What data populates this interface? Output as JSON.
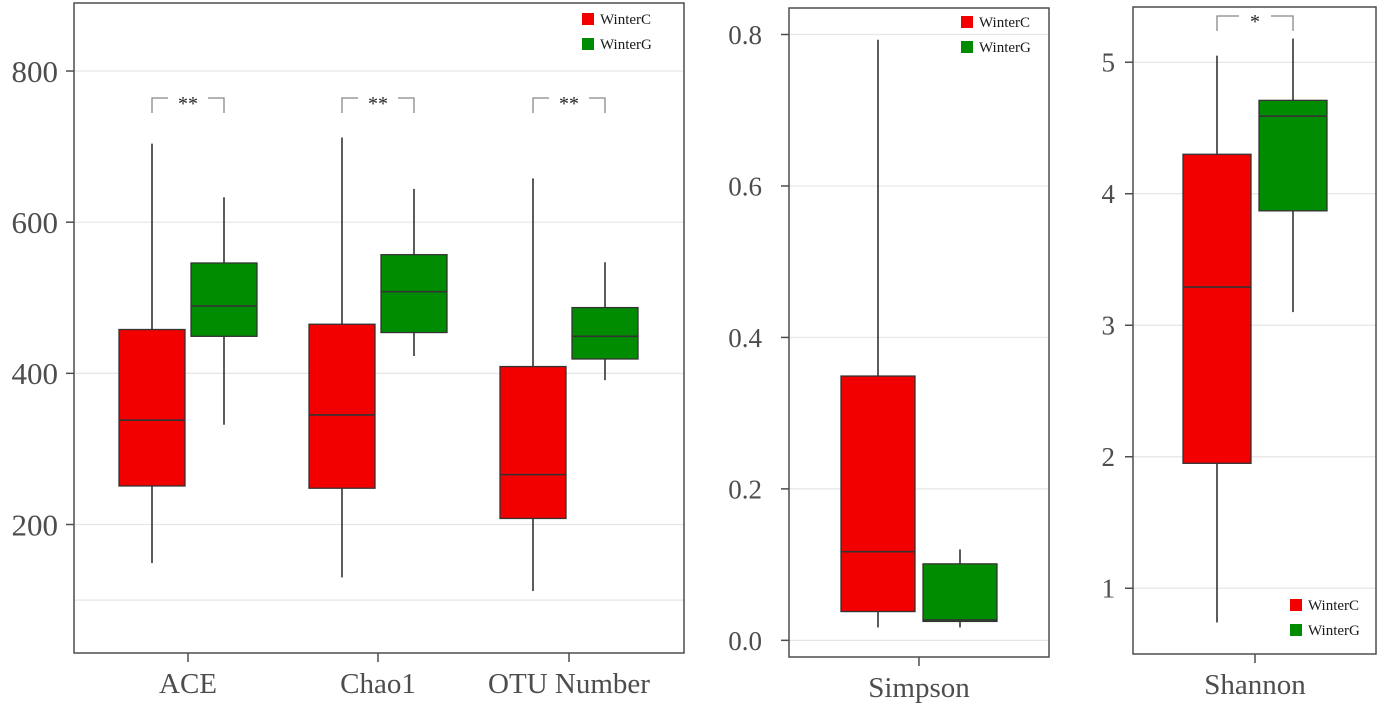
{
  "chart_data": [
    {
      "type": "box",
      "title": "",
      "xlabel": "",
      "ylabel": "",
      "categories": [
        "ACE",
        "Chao1",
        "OTU Number"
      ],
      "ylim": [
        30,
        890
      ],
      "yticks": [
        200,
        400,
        600,
        800
      ],
      "grid": true,
      "legend": {
        "position": "top-right",
        "entries": [
          "WinterC",
          "WinterG"
        ]
      },
      "series": [
        {
          "name": "WinterC",
          "color": "#f20000",
          "boxes": [
            {
              "whisker_low": 149,
              "q1": 251,
              "median": 338,
              "q3": 458,
              "whisker_high": 704
            },
            {
              "whisker_low": 130,
              "q1": 248,
              "median": 345,
              "q3": 465,
              "whisker_high": 712
            },
            {
              "whisker_low": 112,
              "q1": 208,
              "median": 266,
              "q3": 409,
              "whisker_high": 658
            }
          ]
        },
        {
          "name": "WinterG",
          "color": "#008c00",
          "boxes": [
            {
              "whisker_low": 332,
              "q1": 449,
              "median": 489,
              "q3": 546,
              "whisker_high": 633
            },
            {
              "whisker_low": 423,
              "q1": 454,
              "median": 508,
              "q3": 557,
              "whisker_high": 644
            },
            {
              "whisker_low": 391,
              "q1": 419,
              "median": 449,
              "q3": 487,
              "whisker_high": 547
            }
          ]
        }
      ],
      "annotations": [
        {
          "category": "ACE",
          "text": "**"
        },
        {
          "category": "Chao1",
          "text": "**"
        },
        {
          "category": "OTU Number",
          "text": "**"
        }
      ]
    },
    {
      "type": "box",
      "title": "",
      "xlabel": "",
      "ylabel": "",
      "categories": [
        "Simpson"
      ],
      "ylim": [
        -0.022,
        0.835
      ],
      "yticks": [
        0.0,
        0.2,
        0.4,
        0.6,
        0.8
      ],
      "ytick_labels": [
        "0.0",
        "0.2",
        "0.4",
        "0.6",
        "0.8"
      ],
      "grid": true,
      "legend": {
        "position": "top-right",
        "entries": [
          "WinterC",
          "WinterG"
        ]
      },
      "series": [
        {
          "name": "WinterC",
          "color": "#f20000",
          "boxes": [
            {
              "whisker_low": 0.017,
              "q1": 0.038,
              "median": 0.117,
              "q3": 0.349,
              "whisker_high": 0.793
            }
          ]
        },
        {
          "name": "WinterG",
          "color": "#008c00",
          "boxes": [
            {
              "whisker_low": 0.017,
              "q1": 0.025,
              "median": 0.027,
              "q3": 0.101,
              "whisker_high": 0.12
            }
          ]
        }
      ],
      "annotations": []
    },
    {
      "type": "box",
      "title": "",
      "xlabel": "",
      "ylabel": "",
      "categories": [
        "Shannon"
      ],
      "ylim": [
        0.5,
        5.42
      ],
      "yticks": [
        1,
        2,
        3,
        4,
        5
      ],
      "grid": true,
      "legend": {
        "position": "bottom-right",
        "entries": [
          "WinterC",
          "WinterG"
        ]
      },
      "series": [
        {
          "name": "WinterC",
          "color": "#f20000",
          "boxes": [
            {
              "whisker_low": 0.74,
              "q1": 1.95,
              "median": 3.29,
              "q3": 4.3,
              "whisker_high": 5.05
            }
          ]
        },
        {
          "name": "WinterG",
          "color": "#008c00",
          "boxes": [
            {
              "whisker_low": 3.1,
              "q1": 3.87,
              "median": 4.59,
              "q3": 4.71,
              "whisker_high": 5.18
            }
          ]
        }
      ],
      "annotations": [
        {
          "category": "Shannon",
          "text": "*"
        }
      ]
    }
  ]
}
